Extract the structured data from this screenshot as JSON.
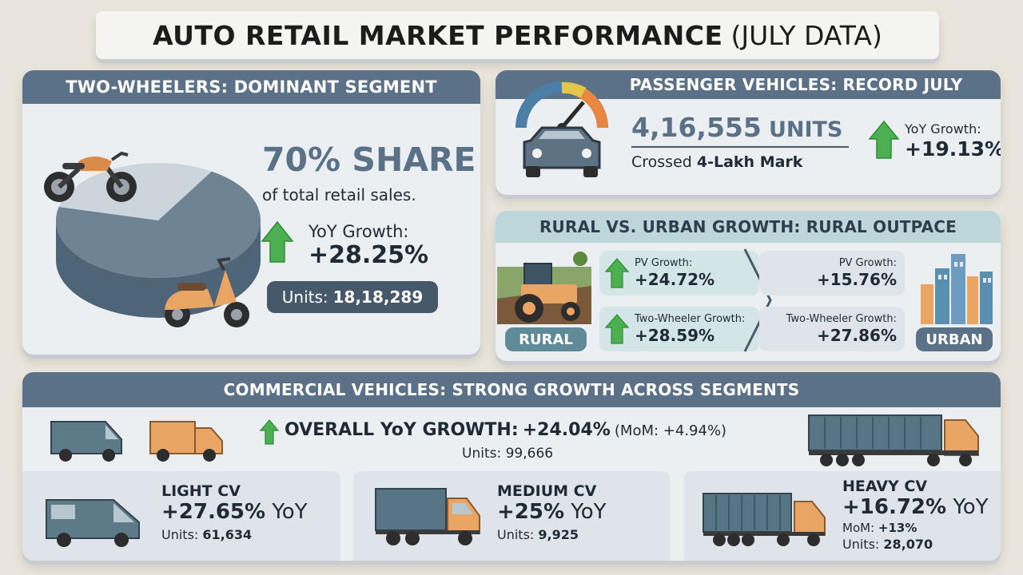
{
  "title": {
    "main": "AUTO RETAIL MARKET PERFORMANCE",
    "suffix": "(JULY DATA)"
  },
  "two_wheelers": {
    "header": "TWO-WHEELERS: DOMINANT SEGMENT",
    "share": "70% SHARE",
    "share_caption": "of total retail sales.",
    "growth_label": "YoY Growth:",
    "growth_value": "+28.25%",
    "units_label": "Units:",
    "units_value": "18,18,289",
    "pie_share": 0.7
  },
  "passenger": {
    "header": "PASSENGER VEHICLES: RECORD JULY",
    "units_number": "4,16,555",
    "units_word": "UNITS",
    "milestone_prefix": "Crossed",
    "milestone_bold": "4-Lakh Mark",
    "growth_label": "YoY Growth:",
    "growth_value": "+19.13%"
  },
  "rural_urban": {
    "header": "RURAL VS. URBAN GROWTH: RURAL OUTPACE",
    "rural_badge": "RURAL",
    "urban_badge": "URBAN",
    "rural_pv_label": "PV Growth:",
    "rural_pv_value": "+24.72%",
    "rural_tw_label": "Two-Wheeler Growth:",
    "rural_tw_value": "+28.59%",
    "urban_pv_label": "PV Growth:",
    "urban_pv_value": "+15.76%",
    "urban_tw_label": "Two-Wheeler Growth:",
    "urban_tw_value": "+27.86%"
  },
  "commercial": {
    "header": "COMMERCIAL VEHICLES: STRONG GROWTH ACROSS SEGMENTS",
    "overall_label": "OVERALL YoY GROWTH:",
    "overall_value": "+24.04%",
    "overall_mom": "(MoM: +4.94%)",
    "overall_units": "Units: 99,666",
    "light": {
      "title": "LIGHT CV",
      "growth": "+27.65%",
      "yoy": "YoY",
      "units_label": "Units:",
      "units_value": "61,634"
    },
    "medium": {
      "title": "MEDIUM CV",
      "growth": "+25%",
      "yoy": "YoY",
      "units_label": "Units:",
      "units_value": "9,925"
    },
    "heavy": {
      "title": "HEAVY CV",
      "growth": "+16.72%",
      "yoy": "YoY",
      "mom_label": "MoM:",
      "mom_value": "+13%",
      "units_label": "Units:",
      "units_value": "28,070"
    }
  },
  "colors": {
    "green": "#4caf50",
    "slate": "#5a7187",
    "orange": "#e8a563",
    "teal": "#6e8fa1"
  }
}
